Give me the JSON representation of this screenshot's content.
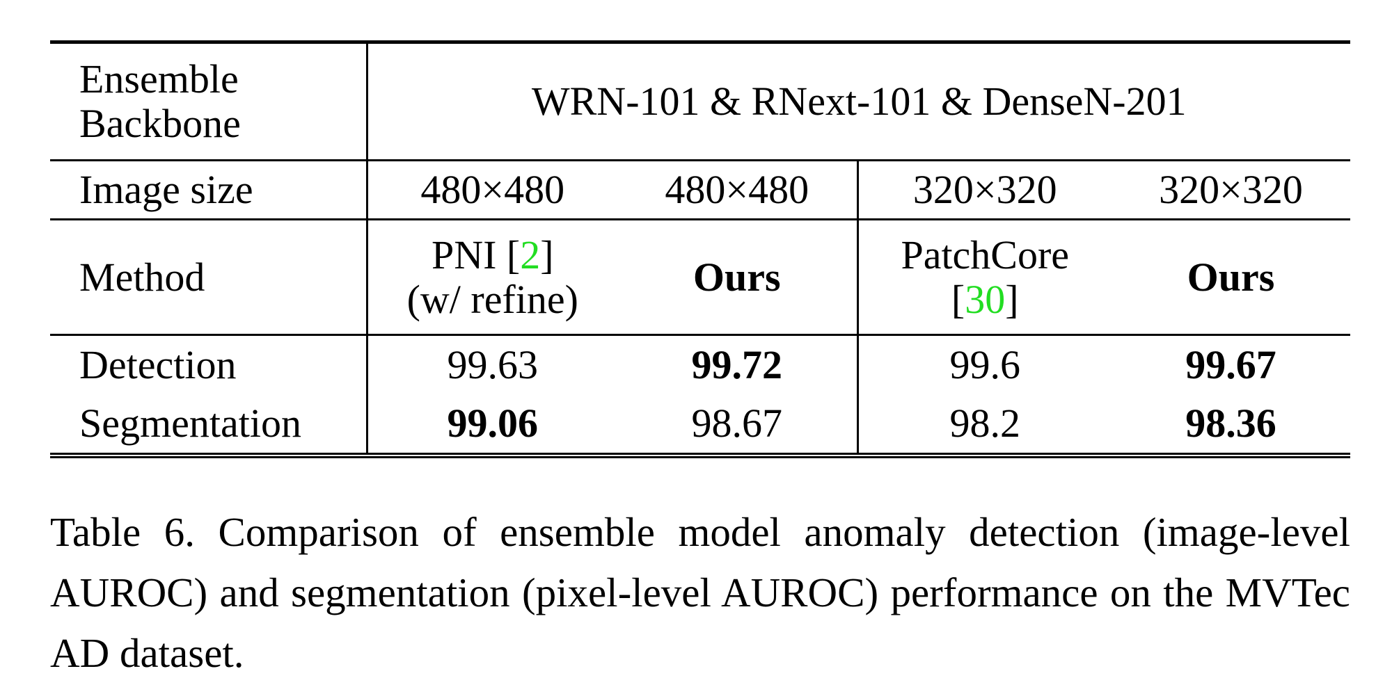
{
  "table": {
    "backbone_row": {
      "label_line1": "Ensemble",
      "label_line2": "Backbone",
      "value": "WRN-101 & RNext-101 & DenseN-201"
    },
    "image_size_row": {
      "label": "Image size",
      "values": [
        "480×480",
        "480×480",
        "320×320",
        "320×320"
      ]
    },
    "method_row": {
      "label": "Method",
      "pni": {
        "name": "PNI",
        "cite_open": "[",
        "cite_num": "2",
        "cite_close": "]",
        "note": "(w/ refine)"
      },
      "ours_a": "Ours",
      "patchcore": {
        "name": "PatchCore",
        "cite_open": "[",
        "cite_num": "30",
        "cite_close": "]"
      },
      "ours_b": "Ours"
    },
    "detection_row": {
      "label": "Detection",
      "values": [
        "99.63",
        "99.72",
        "99.6",
        "99.67"
      ],
      "bold": [
        false,
        true,
        false,
        true
      ]
    },
    "segmentation_row": {
      "label": "Segmentation",
      "values": [
        "99.06",
        "98.67",
        "98.2",
        "98.36"
      ],
      "bold": [
        true,
        false,
        false,
        true
      ]
    }
  },
  "caption": "Table 6.  Comparison of ensemble model anomaly detection (image-level AUROC) and segmentation (pixel-level AUROC) performance on the MVTec AD dataset.",
  "colors": {
    "citation": "#22dd22",
    "text": "#000000"
  }
}
